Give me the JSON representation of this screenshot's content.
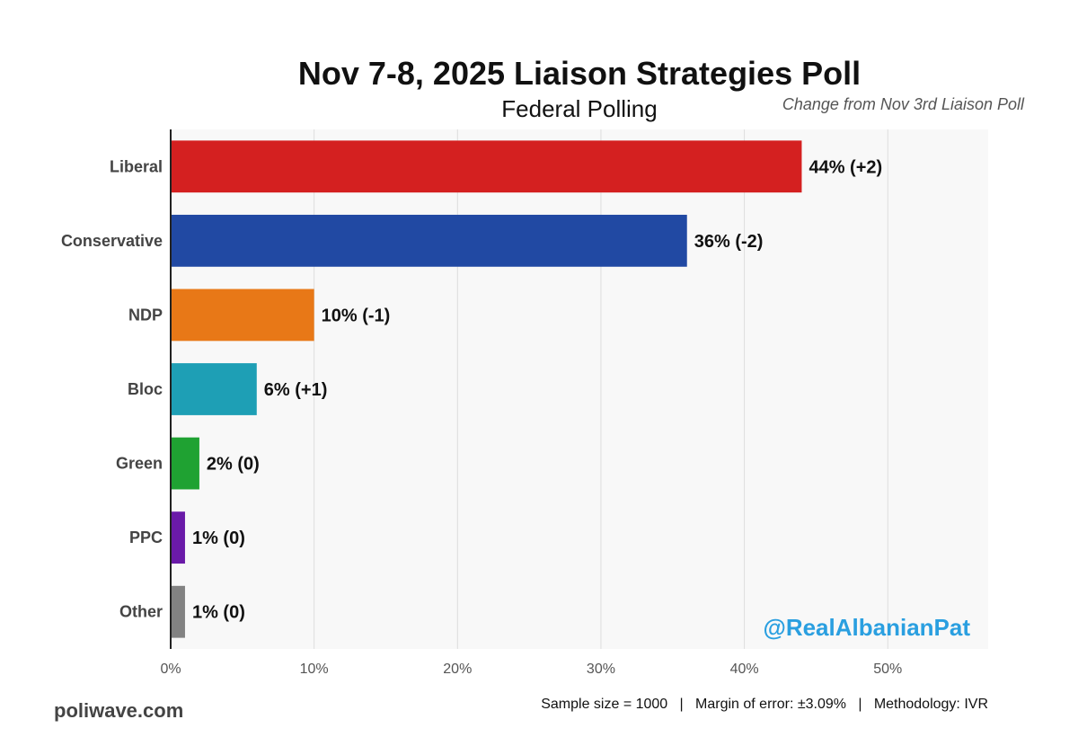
{
  "chart_data": {
    "type": "bar",
    "orientation": "horizontal",
    "title": "Nov 7-8, 2025 Liaison Strategies Poll",
    "subtitle": "Federal Polling",
    "note": "Change from Nov 3rd Liaison Poll",
    "categories": [
      "Liberal",
      "Conservative",
      "NDP",
      "Bloc",
      "Green",
      "PPC",
      "Other"
    ],
    "values": [
      44,
      36,
      10,
      6,
      2,
      1,
      1
    ],
    "changes": [
      "+2",
      "-2",
      "-1",
      "+1",
      "0",
      "0",
      "0"
    ],
    "data_labels": [
      "44% (+2)",
      "36% (-2)",
      "10% (-1)",
      "6% (+1)",
      "2% (0)",
      "1% (0)",
      "1% (0)"
    ],
    "colors": [
      "#d42020",
      "#2149a3",
      "#e87817",
      "#1e9fb5",
      "#1fa232",
      "#6a1aa8",
      "#828282"
    ],
    "xlim": [
      0,
      57
    ],
    "x_ticks": [
      0,
      10,
      20,
      30,
      40,
      50
    ],
    "x_tick_labels": [
      "0%",
      "10%",
      "20%",
      "30%",
      "40%",
      "50%"
    ],
    "grid": true,
    "legend": "none",
    "watermark": "@RealAlbanianPat",
    "source": "poliwave.com",
    "footer": "Sample size = 1000   |   Margin of error: ±3.09%   |   Methodology: IVR",
    "plot_background": "#f8f8f8",
    "gridline_color": "#dddddd",
    "watermark_color": "#2a9fe0"
  }
}
